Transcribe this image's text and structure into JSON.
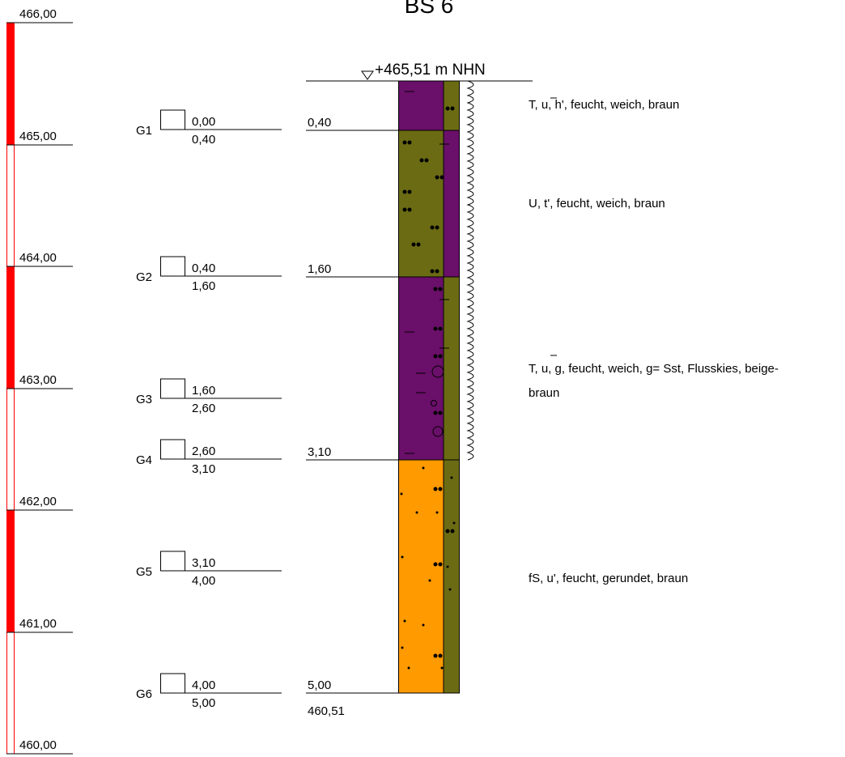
{
  "title": "BS 6",
  "ground_level": "+465,51 m NHN",
  "scale": {
    "labels": [
      "466,00",
      "465,00",
      "464,00",
      "463,00",
      "462,00",
      "461,00",
      "460,00"
    ]
  },
  "samples": [
    {
      "id": "G1",
      "top": "0,00",
      "bottom": "0,40"
    },
    {
      "id": "G2",
      "top": "0,40",
      "bottom": "1,60"
    },
    {
      "id": "G3",
      "top": "1,60",
      "bottom": "2,60"
    },
    {
      "id": "G4",
      "top": "2,60",
      "bottom": "3,10"
    },
    {
      "id": "G5",
      "top": "3,10",
      "bottom": "4,00"
    },
    {
      "id": "G6",
      "top": "4,00",
      "bottom": "5,00"
    }
  ],
  "layers": [
    {
      "depth": "0,40",
      "description": [
        "T, u, h', feucht, weich, braun"
      ]
    },
    {
      "depth": "1,60",
      "description": [
        "U, t', feucht, weich, braun"
      ]
    },
    {
      "depth": "3,10",
      "description": [
        "T, u, g, feucht, weich, g= Sst, Flusskies, beige-",
        "braun"
      ]
    },
    {
      "depth": "5,00",
      "description": [
        "fS, u', feucht, gerundet, braun"
      ]
    }
  ],
  "bottom_level": "460,51"
}
